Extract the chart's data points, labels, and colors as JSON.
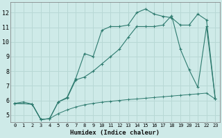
{
  "xlabel": "Humidex (Indice chaleur)",
  "bg_color": "#ceeae8",
  "grid_color": "#b8d8d5",
  "line_color": "#2d7a6e",
  "xlim": [
    -0.5,
    23.5
  ],
  "ylim": [
    4.5,
    12.7
  ],
  "xticks": [
    0,
    1,
    2,
    3,
    4,
    5,
    6,
    7,
    8,
    9,
    10,
    11,
    12,
    13,
    14,
    15,
    16,
    17,
    18,
    19,
    20,
    21,
    22,
    23
  ],
  "yticks": [
    5,
    6,
    7,
    8,
    9,
    10,
    11,
    12
  ],
  "line_top_x": [
    0,
    2,
    3,
    4,
    5,
    6,
    7,
    8,
    9,
    10,
    11,
    12,
    13,
    14,
    15,
    16,
    17,
    18,
    19,
    20,
    21,
    22,
    23
  ],
  "line_top_y": [
    5.8,
    5.75,
    4.7,
    4.75,
    5.9,
    6.2,
    7.5,
    9.2,
    9.0,
    10.8,
    11.05,
    11.05,
    11.15,
    12.0,
    12.25,
    11.9,
    11.75,
    11.65,
    11.15,
    11.15,
    11.9,
    11.5,
    6.1
  ],
  "line_mid_x": [
    0,
    2,
    3,
    4,
    5,
    6,
    7,
    8,
    9,
    10,
    11,
    12,
    13,
    14,
    15,
    16,
    17,
    18,
    19,
    20,
    21,
    22,
    23
  ],
  "line_mid_y": [
    5.8,
    5.75,
    4.7,
    4.75,
    5.9,
    6.15,
    7.4,
    7.6,
    8.0,
    8.5,
    9.0,
    9.5,
    10.3,
    11.05,
    11.05,
    11.05,
    11.15,
    11.8,
    9.5,
    8.1,
    6.9,
    11.05,
    6.1
  ],
  "line_bot_x": [
    0,
    1,
    2,
    3,
    4,
    5,
    6,
    7,
    8,
    9,
    10,
    11,
    12,
    13,
    14,
    15,
    16,
    17,
    18,
    19,
    20,
    21,
    22,
    23
  ],
  "line_bot_y": [
    5.8,
    5.9,
    5.75,
    4.7,
    4.75,
    5.1,
    5.35,
    5.55,
    5.7,
    5.8,
    5.88,
    5.94,
    6.0,
    6.06,
    6.1,
    6.15,
    6.2,
    6.25,
    6.3,
    6.35,
    6.4,
    6.45,
    6.5,
    6.1
  ]
}
